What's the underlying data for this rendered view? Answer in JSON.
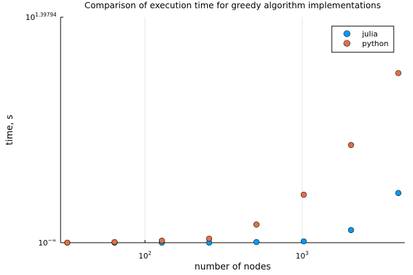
{
  "chart_data": {
    "type": "scatter",
    "title": "Comparison of execution time for greedy algorithm implementations",
    "xlabel": "number of nodes",
    "ylabel": "time, s",
    "x_scale": "log10",
    "y_scale": "log10",
    "xlim": [
      29,
      4500
    ],
    "x_ticks": [
      {
        "value": 100,
        "base": "10",
        "exponent": "2"
      },
      {
        "value": 1000,
        "base": "10",
        "exponent": "3"
      }
    ],
    "y_ticks": [
      {
        "position": "bottom",
        "base": "10",
        "exponent": "−∞"
      },
      {
        "position": "top",
        "base": "10",
        "exponent": "1.39794"
      }
    ],
    "grid": true,
    "legend_position": "top-right",
    "series": [
      {
        "name": "julia",
        "color": "#009af9",
        "x": [
          32,
          64,
          128,
          256,
          512,
          1024,
          2048,
          4096
        ],
        "y": [
          0.0,
          0.0,
          0.0,
          0.0,
          0.01,
          0.02,
          0.2,
          1.05
        ]
      },
      {
        "name": "python",
        "color": "#e26f46",
        "x": [
          32,
          64,
          128,
          256,
          512,
          1024,
          2048,
          4096
        ],
        "y": [
          0.0,
          0.01,
          0.03,
          0.06,
          0.3,
          1.0,
          3.1,
          10.6
        ]
      }
    ]
  }
}
